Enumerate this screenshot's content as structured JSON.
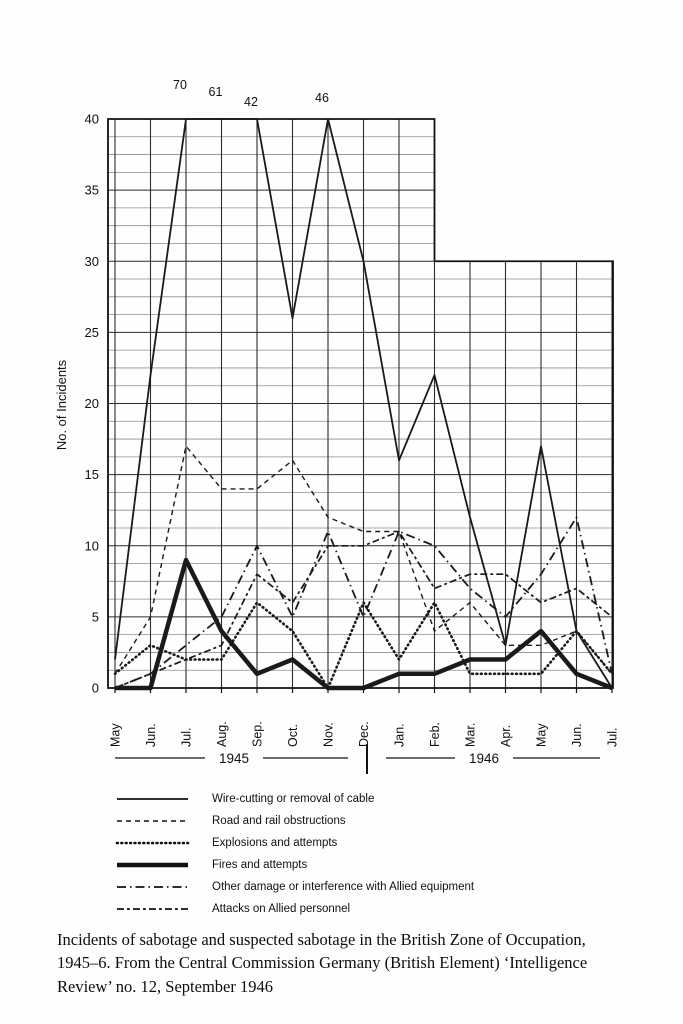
{
  "chart_data": {
    "type": "line",
    "title": "",
    "xlabel": "",
    "ylabel": "No. of Incidents",
    "grid": "on",
    "ylim_1945_section": [
      0,
      40
    ],
    "ylim_1946_section": [
      0,
      30
    ],
    "ytick_labels": [
      "40",
      "35",
      "30",
      "25",
      "20",
      "15",
      "10",
      "5",
      "0"
    ],
    "categories": [
      "May",
      "Jun.",
      "Jul.",
      "Aug.",
      "Sep.",
      "Oct.",
      "Nov.",
      "Dec.",
      "Jan.",
      "Feb.",
      "Mar.",
      "Apr.",
      "May",
      "Jun.",
      "Jul."
    ],
    "year_groups": [
      {
        "label": "1945",
        "months": "May–Dec"
      },
      {
        "label": "1946",
        "months": "Jan.–Jul."
      }
    ],
    "offscale_annotations": [
      {
        "value": "70",
        "month_index": 2,
        "series": "Wire-cutting or removal of cable"
      },
      {
        "value": "61",
        "month_index": 3,
        "series": "Wire-cutting or removal of cable"
      },
      {
        "value": "42",
        "month_index": 4,
        "series": "Wire-cutting or removal of cable"
      },
      {
        "value": "46",
        "month_index": 6,
        "series": "Wire-cutting or removal of cable"
      }
    ],
    "clip_max": 40,
    "series": [
      {
        "name": "Wire-cutting or removal of cable",
        "line_style": "solid",
        "values": [
          2,
          22,
          70,
          61,
          42,
          26,
          46,
          30,
          16,
          22,
          12,
          3,
          17,
          4,
          0
        ]
      },
      {
        "name": "Road and rail obstructions",
        "line_style": "dashed",
        "values": [
          1,
          5,
          17,
          14,
          14,
          16,
          12,
          11,
          11,
          4,
          6,
          3,
          3,
          4,
          1
        ]
      },
      {
        "name": "Explosions and attempts",
        "line_style": "dotted",
        "values": [
          1,
          3,
          2,
          2,
          6,
          4,
          0,
          6,
          2,
          6,
          1,
          1,
          1,
          4,
          1
        ]
      },
      {
        "name": "Fires and attempts",
        "line_style": "thick",
        "values": [
          0,
          0,
          9,
          4,
          1,
          2,
          0,
          0,
          1,
          1,
          2,
          2,
          4,
          1,
          0
        ]
      },
      {
        "name": "Other damage or interference with Allied equipment",
        "line_style": "dash-dot",
        "values": [
          0,
          1,
          3,
          5,
          10,
          5,
          11,
          5,
          11,
          10,
          7,
          5,
          8,
          12,
          1
        ]
      },
      {
        "name": "Attacks on Allied personnel",
        "line_style": "long-short-dash",
        "values": [
          0,
          1,
          2,
          3,
          8,
          6,
          10,
          10,
          11,
          7,
          8,
          8,
          6,
          7,
          5
        ]
      }
    ],
    "line_color": "#1a1a1a"
  },
  "legend": {
    "items": [
      {
        "label": "Wire-cutting or removal of cable",
        "line_style": "solid"
      },
      {
        "label": "Road and rail obstructions",
        "line_style": "dashed"
      },
      {
        "label": "Explosions and attempts",
        "line_style": "dotted"
      },
      {
        "label": "Fires and attempts",
        "line_style": "thick"
      },
      {
        "label": "Other damage or interference with Allied equipment",
        "line_style": "dash-dot"
      },
      {
        "label": "Attacks on Allied personnel",
        "line_style": "long-short-dash"
      }
    ]
  },
  "caption": {
    "line1": "Incidents of sabotage and suspected sabotage in the British Zone of Occupation,",
    "line2": "1945–6. From the Central Commission Germany (British Element) ‘Intelligence",
    "line3": "Review’ no. 12, September 1946"
  }
}
